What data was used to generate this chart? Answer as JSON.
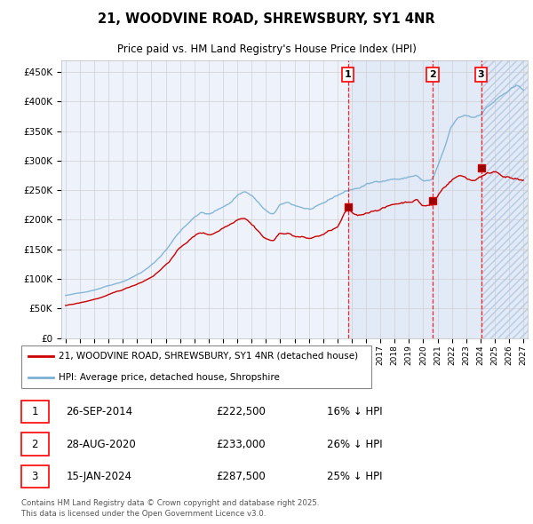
{
  "title_line1": "21, WOODVINE ROAD, SHREWSBURY, SY1 4NR",
  "title_line2": "Price paid vs. HM Land Registry's House Price Index (HPI)",
  "hpi_color": "#7ab0d4",
  "price_color": "#cc0000",
  "background_color": "#ffffff",
  "plot_bg_color": "#eef2fb",
  "grid_color": "#cccccc",
  "ylim": [
    0,
    470000
  ],
  "yticks": [
    0,
    50000,
    100000,
    150000,
    200000,
    250000,
    300000,
    350000,
    400000,
    450000
  ],
  "xlim_start": 1994.7,
  "xlim_end": 2027.3,
  "sale_dates": [
    2014.74,
    2020.66,
    2024.04
  ],
  "sale_prices": [
    222500,
    233000,
    287500
  ],
  "sale_labels": [
    "1",
    "2",
    "3"
  ],
  "sale_info": [
    {
      "label": "1",
      "date": "26-SEP-2014",
      "price": "£222,500",
      "pct": "16% ↓ HPI"
    },
    {
      "label": "2",
      "date": "28-AUG-2020",
      "price": "£233,000",
      "pct": "26% ↓ HPI"
    },
    {
      "label": "3",
      "date": "15-JAN-2024",
      "price": "£287,500",
      "pct": "25% ↓ HPI"
    }
  ],
  "legend_line1": "21, WOODVINE ROAD, SHREWSBURY, SY1 4NR (detached house)",
  "legend_line2": "HPI: Average price, detached house, Shropshire",
  "footer": "Contains HM Land Registry data © Crown copyright and database right 2025.\nThis data is licensed under the Open Government Licence v3.0."
}
